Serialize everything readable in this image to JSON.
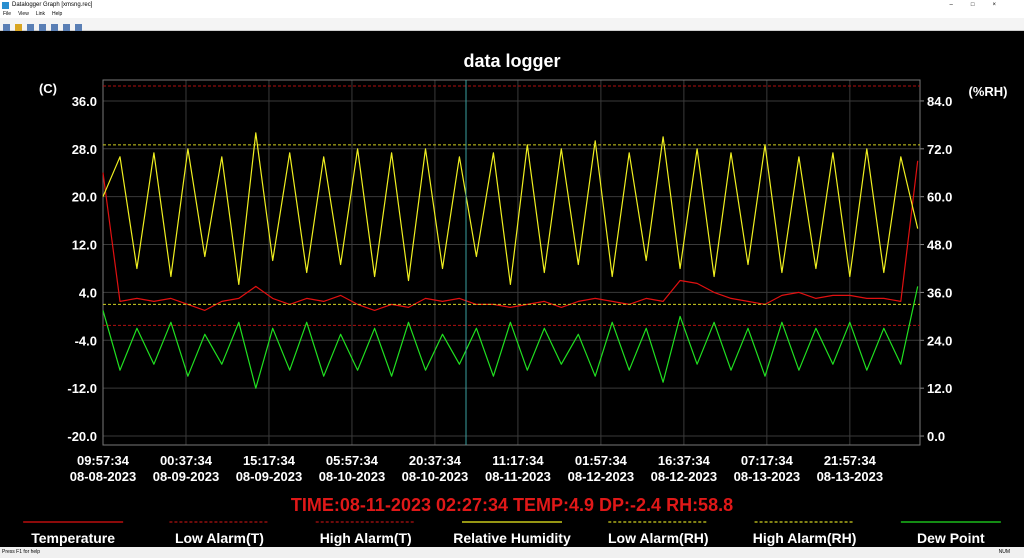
{
  "window": {
    "title": "Datalogger Graph [xmsng.rec]",
    "menu": [
      "File",
      "View",
      "Link",
      "Help"
    ],
    "status": "Press F1 for help",
    "status_right": "NUM"
  },
  "chart_data": {
    "type": "line",
    "title": "data logger",
    "y_label": "(C)",
    "y2_label": "(%RH)",
    "readout": "TIME:08-11-2023 02:27:34   TEMP:4.9   DP:-2.4   RH:58.8",
    "x": [
      "08-08-2023 09:57:34",
      "08-08-2023 12:57:34",
      "08-08-2023 15:57:34",
      "08-08-2023 18:57:34",
      "08-08-2023 21:57:34",
      "08-09-2023 00:57:34",
      "08-09-2023 03:57:34",
      "08-09-2023 06:57:34",
      "08-09-2023 09:57:34",
      "08-09-2023 12:57:34",
      "08-09-2023 15:57:34",
      "08-09-2023 18:57:34",
      "08-09-2023 21:57:34",
      "08-10-2023 00:57:34",
      "08-10-2023 03:57:34",
      "08-10-2023 06:57:34",
      "08-10-2023 09:57:34",
      "08-10-2023 12:57:34",
      "08-10-2023 15:57:34",
      "08-10-2023 18:57:34",
      "08-10-2023 21:57:34",
      "08-11-2023 00:57:34",
      "08-11-2023 03:57:34",
      "08-11-2023 06:57:34",
      "08-11-2023 09:57:34",
      "08-11-2023 12:57:34",
      "08-11-2023 15:57:34",
      "08-11-2023 18:57:34",
      "08-11-2023 21:57:34",
      "08-12-2023 00:57:34",
      "08-12-2023 03:57:34",
      "08-12-2023 06:57:34",
      "08-12-2023 09:57:34",
      "08-12-2023 12:57:34",
      "08-12-2023 15:57:34",
      "08-12-2023 18:57:34",
      "08-12-2023 21:57:34",
      "08-13-2023 00:57:34",
      "08-13-2023 03:57:34",
      "08-13-2023 06:57:34",
      "08-13-2023 09:57:34",
      "08-13-2023 12:57:34",
      "08-13-2023 15:57:34",
      "08-13-2023 18:57:34",
      "08-13-2023 21:57:34",
      "08-14-2023 00:57:34",
      "08-14-2023 03:57:34",
      "08-14-2023 06:57:34",
      "08-14-2023 09:57:34"
    ],
    "xlim": [
      "08-08-2023 09:57:34",
      "08-14-2023 10:21:34"
    ],
    "xticks": [
      {
        "value": "08-08-2023 09:57:34",
        "label": [
          "09:57:34",
          "08-08-2023"
        ]
      },
      {
        "value": "08-09-2023 00:37:34",
        "label": [
          "00:37:34",
          "08-09-2023"
        ]
      },
      {
        "value": "08-09-2023 15:17:34",
        "label": [
          "15:17:34",
          "08-09-2023"
        ]
      },
      {
        "value": "08-10-2023 05:57:34",
        "label": [
          "05:57:34",
          "08-10-2023"
        ]
      },
      {
        "value": "08-10-2023 20:37:34",
        "label": [
          "20:37:34",
          "08-10-2023"
        ]
      },
      {
        "value": "08-11-2023 11:17:34",
        "label": [
          "11:17:34",
          "08-11-2023"
        ]
      },
      {
        "value": "08-12-2023 01:57:34",
        "label": [
          "01:57:34",
          "08-12-2023"
        ]
      },
      {
        "value": "08-12-2023 16:37:34",
        "label": [
          "16:37:34",
          "08-12-2023"
        ]
      },
      {
        "value": "08-13-2023 07:17:34",
        "label": [
          "07:17:34",
          "08-13-2023"
        ]
      },
      {
        "value": "08-13-2023 21:57:34",
        "label": [
          "21:57:34",
          "08-13-2023"
        ]
      }
    ],
    "ylim": [
      -21.5,
      39.5
    ],
    "yticks": [
      {
        "value": -20,
        "label": "-20.0"
      },
      {
        "value": -12,
        "label": "-12.0"
      },
      {
        "value": -4,
        "label": "-4.0"
      },
      {
        "value": 4,
        "label": "4.0"
      },
      {
        "value": 12,
        "label": "12.0"
      },
      {
        "value": 20,
        "label": "20.0"
      },
      {
        "value": 28,
        "label": "28.0"
      },
      {
        "value": 36,
        "label": "36.0"
      }
    ],
    "y2lim": [
      -2.25,
      89.25
    ],
    "y2ticks": [
      {
        "value": 0,
        "label": "0.0"
      },
      {
        "value": 12,
        "label": "12.0"
      },
      {
        "value": 24,
        "label": "24.0"
      },
      {
        "value": 36,
        "label": "36.0"
      },
      {
        "value": 48,
        "label": "48.0"
      },
      {
        "value": 60,
        "label": "60.0"
      },
      {
        "value": 72,
        "label": "72.0"
      },
      {
        "value": 84,
        "label": "84.0"
      }
    ],
    "grid": true,
    "series": [
      {
        "name": "Temperature",
        "color": "#e01010",
        "values": [
          24,
          2.5,
          3,
          2.5,
          3,
          2,
          1,
          2.5,
          3,
          5,
          3,
          2,
          3,
          2.5,
          3.5,
          2,
          1,
          2,
          1.5,
          3,
          2.5,
          3,
          2,
          2,
          1.5,
          2,
          2.5,
          1.5,
          2.5,
          3,
          2.5,
          2,
          3,
          2.5,
          6,
          5.5,
          4,
          3,
          2.5,
          2,
          3.5,
          4,
          3,
          3.5,
          3.5,
          3,
          3,
          2.5,
          26
        ]
      },
      {
        "name": "Low Alarm(T)",
        "color": "#b01010",
        "dashed": true,
        "value": -1.5
      },
      {
        "name": "High Alarm(T)",
        "color": "#b01010",
        "dashed": true,
        "value": 38.5
      },
      {
        "name": "Relative Humidity",
        "color": "#f0f020",
        "axis": "y2",
        "values": [
          60,
          70,
          42,
          71,
          40,
          72,
          45,
          70,
          38,
          76,
          44,
          71,
          41,
          70,
          43,
          72,
          40,
          71,
          39,
          72,
          42,
          70,
          45,
          71,
          38,
          73,
          41,
          72,
          43,
          74,
          40,
          71,
          44,
          75,
          42,
          72,
          40,
          71,
          43,
          73,
          41,
          70,
          42,
          71,
          40,
          72,
          41,
          70,
          52
        ]
      },
      {
        "name": "Low Alarm(RH)",
        "color": "#d0d020",
        "axis": "y2",
        "dashed": true,
        "value": 33
      },
      {
        "name": "High Alarm(RH)",
        "color": "#d0d020",
        "axis": "y2",
        "dashed": true,
        "value": 73
      },
      {
        "name": "Dew Point",
        "color": "#20e020",
        "values": [
          1,
          -9,
          -2,
          -8,
          -1,
          -10,
          -3,
          -8,
          -1,
          -12,
          -2,
          -9,
          -1,
          -10,
          -3,
          -9,
          -2,
          -10,
          -1,
          -9,
          -3,
          -8,
          -2,
          -10,
          -1,
          -9,
          -2,
          -8,
          -3,
          -10,
          -1,
          -9,
          -2,
          -11,
          0,
          -8,
          -1,
          -9,
          -2,
          -10,
          -1,
          -9,
          -2,
          -8,
          -1,
          -9,
          -2,
          -8,
          5
        ]
      }
    ]
  }
}
